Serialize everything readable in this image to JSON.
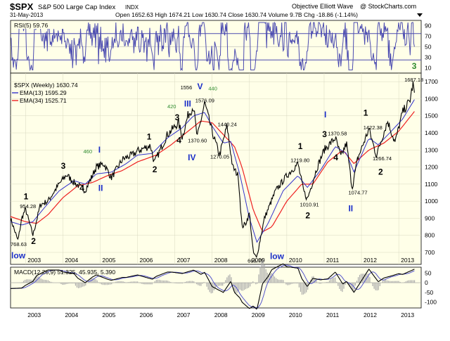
{
  "header": {
    "symbol": "$SPX",
    "name": "S&P 500 Large Cap Index",
    "exchange": "INDX",
    "date": "31-May-2013",
    "ohlc": "Open 1652.63   High 1674.21   Low 1630.74   Close 1630.74   Volume 9.7B   Chg -18.86 (-1.14%)",
    "source": "Objective Elliott Wave",
    "copyright": "@ StockCharts.com"
  },
  "rsi_panel": {
    "label": "RSI(5) 59.76",
    "ticks": [
      10,
      30,
      50,
      70,
      90
    ],
    "levels": [
      30,
      70
    ]
  },
  "price_panel": {
    "label": "$SPX (Weekly) 1630.74",
    "ema13_label": "EMA(13) 1595.29",
    "ema34_label": "EMA(34) 1525.71",
    "ticks": [
      700,
      800,
      900,
      1000,
      1100,
      1200,
      1300,
      1400,
      1500,
      1600,
      1700
    ]
  },
  "macd_panel": {
    "label": "MACD(12,26,9) 51.325, 45.935, 5.390",
    "ticks": [
      -100,
      -50,
      0,
      50
    ]
  },
  "x_axis_labels": [
    "2003",
    "2004",
    "2005",
    "2006",
    "2007",
    "2008",
    "2009",
    "2010",
    "2011",
    "2012",
    "2013"
  ],
  "colors": {
    "panel_bg": "#ffffe8",
    "price": "#000000",
    "ema13": "#3333cc",
    "ema34": "#ee2222",
    "rsi": "#4b4bb0",
    "macd": "#000000",
    "signal": "#5555cc",
    "histogram": "#aaaaaa",
    "wave_black": "#000000",
    "wave_blue": "#1a2ec8",
    "wave_green": "#2e8b2e"
  },
  "chart_data": {
    "type": "line",
    "title": "$SPX S&P 500 Large Cap Index",
    "x_unit": "year",
    "xlim": [
      2002.6,
      2013.6
    ],
    "ylim": [
      630,
      1750
    ],
    "series": [
      {
        "name": "$SPX (Weekly)",
        "points": [
          [
            2002.6,
            900
          ],
          [
            2002.75,
            800
          ],
          [
            2002.8,
            768.63
          ],
          [
            2002.9,
            900
          ],
          [
            2003.0,
            954.28
          ],
          [
            2003.2,
            800.73
          ],
          [
            2003.4,
            980
          ],
          [
            2003.6,
            1000
          ],
          [
            2003.9,
            1100
          ],
          [
            2004.1,
            1155
          ],
          [
            2004.3,
            1110
          ],
          [
            2004.6,
            1063
          ],
          [
            2004.9,
            1200
          ],
          [
            2005.1,
            1220
          ],
          [
            2005.3,
            1137
          ],
          [
            2005.6,
            1245
          ],
          [
            2005.9,
            1275
          ],
          [
            2006.0,
            1294
          ],
          [
            2006.35,
            1326
          ],
          [
            2006.45,
            1224
          ],
          [
            2006.8,
            1390
          ],
          [
            2007.1,
            1460
          ],
          [
            2007.2,
            1374
          ],
          [
            2007.35,
            1500
          ],
          [
            2007.5,
            1556
          ],
          [
            2007.6,
            1370.6
          ],
          [
            2007.8,
            1576.09
          ],
          [
            2008.0,
            1406
          ],
          [
            2008.2,
            1270.05
          ],
          [
            2008.4,
            1440.24
          ],
          [
            2008.55,
            1200
          ],
          [
            2008.7,
            1150
          ],
          [
            2008.8,
            850
          ],
          [
            2008.9,
            870
          ],
          [
            2009.0,
            930
          ],
          [
            2009.1,
            700
          ],
          [
            2009.19,
            666.79
          ],
          [
            2009.4,
            900
          ],
          [
            2009.7,
            1060
          ],
          [
            2010.0,
            1150
          ],
          [
            2010.3,
            1219.8
          ],
          [
            2010.45,
            1060
          ],
          [
            2010.55,
            1010.91
          ],
          [
            2010.8,
            1190
          ],
          [
            2011.0,
            1300
          ],
          [
            2011.3,
            1370.58
          ],
          [
            2011.45,
            1260
          ],
          [
            2011.6,
            1340
          ],
          [
            2011.75,
            1074.77
          ],
          [
            2011.9,
            1250
          ],
          [
            2012.2,
            1422.38
          ],
          [
            2012.4,
            1266.74
          ],
          [
            2012.7,
            1470
          ],
          [
            2012.9,
            1343
          ],
          [
            2013.1,
            1520
          ],
          [
            2013.3,
            1590
          ],
          [
            2013.38,
            1687.18
          ],
          [
            2013.42,
            1630.74
          ]
        ]
      },
      {
        "name": "EMA(13)",
        "points": [
          [
            2002.6,
            880
          ],
          [
            2002.9,
            860
          ],
          [
            2003.2,
            880
          ],
          [
            2003.5,
            960
          ],
          [
            2003.9,
            1060
          ],
          [
            2004.3,
            1120
          ],
          [
            2004.6,
            1100
          ],
          [
            2004.9,
            1160
          ],
          [
            2005.3,
            1170
          ],
          [
            2005.7,
            1220
          ],
          [
            2006.0,
            1270
          ],
          [
            2006.4,
            1280
          ],
          [
            2006.8,
            1370
          ],
          [
            2007.2,
            1430
          ],
          [
            2007.5,
            1500
          ],
          [
            2007.8,
            1520
          ],
          [
            2008.0,
            1440
          ],
          [
            2008.3,
            1340
          ],
          [
            2008.5,
            1350
          ],
          [
            2008.75,
            1150
          ],
          [
            2009.0,
            900
          ],
          [
            2009.2,
            760
          ],
          [
            2009.5,
            870
          ],
          [
            2009.9,
            1060
          ],
          [
            2010.3,
            1150
          ],
          [
            2010.55,
            1080
          ],
          [
            2010.9,
            1180
          ],
          [
            2011.3,
            1320
          ],
          [
            2011.6,
            1280
          ],
          [
            2011.8,
            1170
          ],
          [
            2012.2,
            1370
          ],
          [
            2012.45,
            1330
          ],
          [
            2012.8,
            1410
          ],
          [
            2013.1,
            1480
          ],
          [
            2013.42,
            1595.29
          ]
        ]
      },
      {
        "name": "EMA(34)",
        "points": [
          [
            2002.6,
            910
          ],
          [
            2003.0,
            880
          ],
          [
            2003.3,
            870
          ],
          [
            2003.6,
            920
          ],
          [
            2004.0,
            1020
          ],
          [
            2004.4,
            1090
          ],
          [
            2004.8,
            1110
          ],
          [
            2005.2,
            1150
          ],
          [
            2005.6,
            1180
          ],
          [
            2006.0,
            1230
          ],
          [
            2006.5,
            1270
          ],
          [
            2006.9,
            1330
          ],
          [
            2007.3,
            1400
          ],
          [
            2007.7,
            1470
          ],
          [
            2008.0,
            1460
          ],
          [
            2008.3,
            1390
          ],
          [
            2008.6,
            1320
          ],
          [
            2008.8,
            1200
          ],
          [
            2009.1,
            950
          ],
          [
            2009.35,
            820
          ],
          [
            2009.6,
            850
          ],
          [
            2010.0,
            1000
          ],
          [
            2010.4,
            1100
          ],
          [
            2010.7,
            1100
          ],
          [
            2011.1,
            1230
          ],
          [
            2011.5,
            1300
          ],
          [
            2011.8,
            1220
          ],
          [
            2012.2,
            1300
          ],
          [
            2012.6,
            1340
          ],
          [
            2013.0,
            1410
          ],
          [
            2013.42,
            1525.71
          ]
        ]
      }
    ],
    "rsi": {
      "name": "RSI(5)",
      "ylim": [
        0,
        100
      ],
      "last": 59.76
    },
    "macd": {
      "name": "MACD(12,26,9)",
      "ylim": [
        -130,
        80
      ],
      "macd": 51.325,
      "signal": 45.935,
      "hist": 5.39
    },
    "annotations": [
      {
        "text": "1",
        "x": 2002.95,
        "y": 1010,
        "color": "black",
        "size": "large"
      },
      {
        "text": "954.28",
        "x": 2002.85,
        "y": 960,
        "color": "black",
        "size": "small"
      },
      {
        "text": "768.63",
        "x": 2002.6,
        "y": 738,
        "color": "black",
        "size": "small"
      },
      {
        "text": "low",
        "x": 2002.62,
        "y": 665,
        "color": "blue",
        "size": "large"
      },
      {
        "text": "2",
        "x": 2003.15,
        "y": 750,
        "color": "black",
        "size": "large"
      },
      {
        "text": "3",
        "x": 2003.95,
        "y": 1190,
        "color": "black",
        "size": "large"
      },
      {
        "text": "4",
        "x": 2004.45,
        "y": 1060,
        "color": "black",
        "size": "large"
      },
      {
        "text": "460",
        "x": 2004.55,
        "y": 1280,
        "color": "green",
        "size": "small"
      },
      {
        "text": "I",
        "x": 2004.95,
        "y": 1285,
        "color": "blue",
        "size": "large"
      },
      {
        "text": "II",
        "x": 2004.95,
        "y": 1060,
        "color": "blue",
        "size": "large"
      },
      {
        "text": "1",
        "x": 2006.25,
        "y": 1360,
        "color": "black",
        "size": "large"
      },
      {
        "text": "2",
        "x": 2006.4,
        "y": 1170,
        "color": "black",
        "size": "large"
      },
      {
        "text": "420",
        "x": 2006.8,
        "y": 1545,
        "color": "green",
        "size": "small"
      },
      {
        "text": "3",
        "x": 2007.0,
        "y": 1475,
        "color": "black",
        "size": "large"
      },
      {
        "text": "III",
        "x": 2007.25,
        "y": 1555,
        "color": "blue",
        "size": "large"
      },
      {
        "text": "1556",
        "x": 2007.15,
        "y": 1655,
        "color": "black",
        "size": "small"
      },
      {
        "text": "V",
        "x": 2007.6,
        "y": 1655,
        "color": "blue",
        "size": "large"
      },
      {
        "text": "440",
        "x": 2007.9,
        "y": 1650,
        "color": "green",
        "size": "small"
      },
      {
        "text": "1576.09",
        "x": 2007.55,
        "y": 1580,
        "color": "black",
        "size": "small"
      },
      {
        "text": "1370.60",
        "x": 2007.35,
        "y": 1345,
        "color": "black",
        "size": "small"
      },
      {
        "text": "4",
        "x": 2007.05,
        "y": 1340,
        "color": "black",
        "size": "large"
      },
      {
        "text": "IV",
        "x": 2007.35,
        "y": 1240,
        "color": "blue",
        "size": "large"
      },
      {
        "text": "1440.24",
        "x": 2008.15,
        "y": 1440,
        "color": "black",
        "size": "small"
      },
      {
        "text": "1270.05",
        "x": 2007.95,
        "y": 1250,
        "color": "black",
        "size": "small"
      },
      {
        "text": "666.79",
        "x": 2008.95,
        "y": 640,
        "color": "black",
        "size": "small"
      },
      {
        "text": "low",
        "x": 2009.55,
        "y": 660,
        "color": "blue",
        "size": "large"
      },
      {
        "text": "1",
        "x": 2010.3,
        "y": 1305,
        "color": "black",
        "size": "large"
      },
      {
        "text": "1219.80",
        "x": 2010.1,
        "y": 1230,
        "color": "black",
        "size": "small"
      },
      {
        "text": "1010.91",
        "x": 2010.35,
        "y": 970,
        "color": "black",
        "size": "small"
      },
      {
        "text": "2",
        "x": 2010.5,
        "y": 900,
        "color": "black",
        "size": "large"
      },
      {
        "text": "I",
        "x": 2011.0,
        "y": 1490,
        "color": "blue",
        "size": "large"
      },
      {
        "text": "3",
        "x": 2010.95,
        "y": 1375,
        "color": "black",
        "size": "large"
      },
      {
        "text": "1370.58",
        "x": 2011.1,
        "y": 1385,
        "color": "black",
        "size": "small"
      },
      {
        "text": "4",
        "x": 2011.25,
        "y": 1240,
        "color": "black",
        "size": "large"
      },
      {
        "text": "1074.77",
        "x": 2011.65,
        "y": 1040,
        "color": "black",
        "size": "small"
      },
      {
        "text": "II",
        "x": 2011.65,
        "y": 940,
        "color": "blue",
        "size": "large"
      },
      {
        "text": "1",
        "x": 2012.05,
        "y": 1500,
        "color": "black",
        "size": "large"
      },
      {
        "text": "1422.38",
        "x": 2012.05,
        "y": 1420,
        "color": "black",
        "size": "small"
      },
      {
        "text": "1266.74",
        "x": 2012.3,
        "y": 1240,
        "color": "black",
        "size": "small"
      },
      {
        "text": "2",
        "x": 2012.45,
        "y": 1155,
        "color": "black",
        "size": "large"
      },
      {
        "text": "3",
        "x": 2013.35,
        "y": 1810,
        "color": "green",
        "size": "large"
      },
      {
        "text": "1687.18",
        "x": 2013.15,
        "y": 1700,
        "color": "black",
        "size": "small"
      }
    ]
  }
}
